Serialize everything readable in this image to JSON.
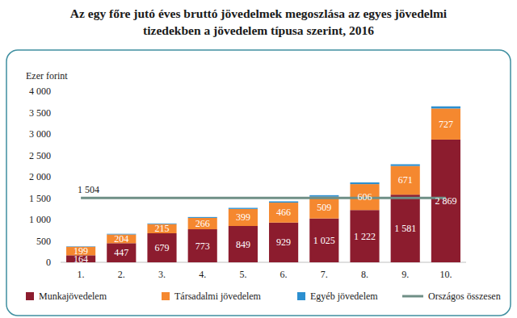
{
  "chart_data": {
    "type": "bar",
    "stacked": true,
    "title": "Az egy főre jutó éves bruttó jövedelmek megoszlása az egyes jövedelmi tizedekben a jövedelem típusa szerint, 2016",
    "y_label": "Ezer forint",
    "categories": [
      "1.",
      "2.",
      "3.",
      "4.",
      "5.",
      "6.",
      "7.",
      "8.",
      "9.",
      "10."
    ],
    "series": [
      {
        "name": "Munkajövedelem",
        "color": "#8c1c2e",
        "data_labels": true,
        "values": [
          164,
          447,
          679,
          773,
          849,
          929,
          1025,
          1222,
          1581,
          2869
        ],
        "value_labels": [
          "164",
          "447",
          "679",
          "773",
          "849",
          "929",
          "1 025",
          "1 222",
          "1 581",
          "2 869"
        ]
      },
      {
        "name": "Társadalmi jövedelem",
        "color": "#f5882f",
        "data_labels": true,
        "values": [
          199,
          204,
          215,
          266,
          399,
          466,
          509,
          606,
          671,
          727
        ],
        "value_labels": [
          "199",
          "204",
          "215",
          "266",
          "399",
          "466",
          "509",
          "606",
          "671",
          "727"
        ]
      },
      {
        "name": "Egyéb jövedelem",
        "color": "#2c8fd0",
        "data_labels": false,
        "values": [
          10,
          15,
          15,
          20,
          25,
          30,
          35,
          40,
          40,
          50
        ]
      }
    ],
    "reference_line": {
      "name": "Országos összesen",
      "value": 1504,
      "label": "1 504",
      "color": "#6f8f86"
    },
    "ylim": [
      0,
      4000
    ],
    "yticks": [
      0,
      500,
      {
        "value": 1000,
        "label": "1 000"
      },
      {
        "value": 1500,
        "label": "1 500"
      },
      {
        "value": 2000,
        "label": "2 000"
      },
      {
        "value": 2500,
        "label": "2 500"
      },
      {
        "value": 3000,
        "label": "3 000"
      },
      {
        "value": 3500,
        "label": "3 500"
      },
      {
        "value": 4000,
        "label": "4 000"
      }
    ],
    "grid": false,
    "legend": "bottom"
  }
}
